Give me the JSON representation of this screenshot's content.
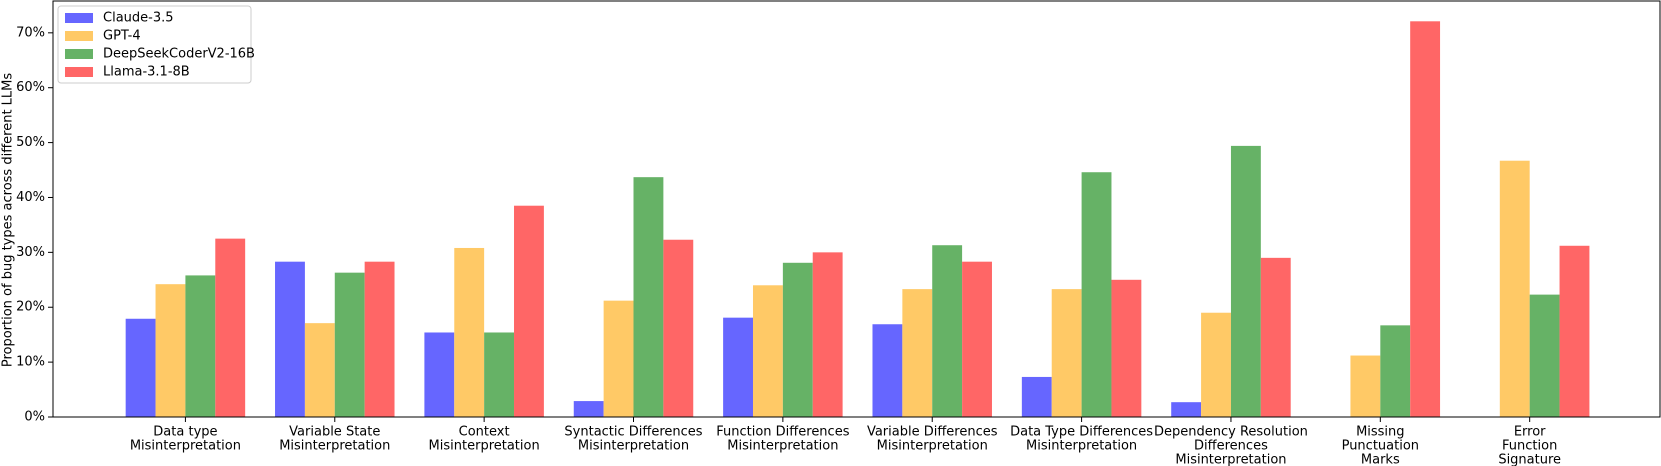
{
  "chart_data": {
    "type": "bar",
    "ylabel": "Proportion of bug types across different LLMs",
    "categories": [
      [
        "Data type",
        "Misinterpretation"
      ],
      [
        "Variable State",
        "Misinterpretation"
      ],
      [
        "Context",
        "Misinterpretation"
      ],
      [
        "Syntactic Differences",
        "Misinterpretation"
      ],
      [
        "Function Differences",
        "Misinterpretation"
      ],
      [
        "Variable Differences",
        "Misinterpretation"
      ],
      [
        "Data Type Differences",
        "Misinterpretation"
      ],
      [
        "Dependency Resolution",
        "Differences",
        "Misinterpretation"
      ],
      [
        "Missing",
        "Punctuation",
        "Marks"
      ],
      [
        "Error",
        "Function",
        "Signature"
      ]
    ],
    "series": [
      {
        "name": "Claude-3.5",
        "color": "#6666ff",
        "values": [
          17.9,
          28.3,
          15.4,
          2.9,
          18.1,
          16.9,
          7.3,
          2.7,
          null,
          null
        ]
      },
      {
        "name": "GPT-4",
        "color": "#ffc966",
        "values": [
          24.2,
          17.1,
          30.8,
          21.2,
          24.0,
          23.3,
          23.3,
          19.0,
          11.2,
          46.7
        ]
      },
      {
        "name": "DeepSeekCoderV2-16B",
        "color": "#66b266",
        "values": [
          25.8,
          26.3,
          15.4,
          43.7,
          28.1,
          31.3,
          44.6,
          49.4,
          16.7,
          22.3
        ]
      },
      {
        "name": "Llama-3.1-8B",
        "color": "#ff6666",
        "values": [
          32.5,
          28.3,
          38.5,
          32.3,
          30.0,
          28.3,
          25.0,
          29.0,
          72.1,
          31.2
        ]
      }
    ],
    "ylim": [
      0,
      75.8
    ],
    "yticks": [
      {
        "value": 0,
        "label": "0%"
      },
      {
        "value": 10,
        "label": "10%"
      },
      {
        "value": 20,
        "label": "20%"
      },
      {
        "value": 30,
        "label": "30%"
      },
      {
        "value": 40,
        "label": "40%"
      },
      {
        "value": 50,
        "label": "50%"
      },
      {
        "value": 60,
        "label": "60%"
      },
      {
        "value": 70,
        "label": "70%"
      }
    ],
    "legend": "upper-left"
  }
}
